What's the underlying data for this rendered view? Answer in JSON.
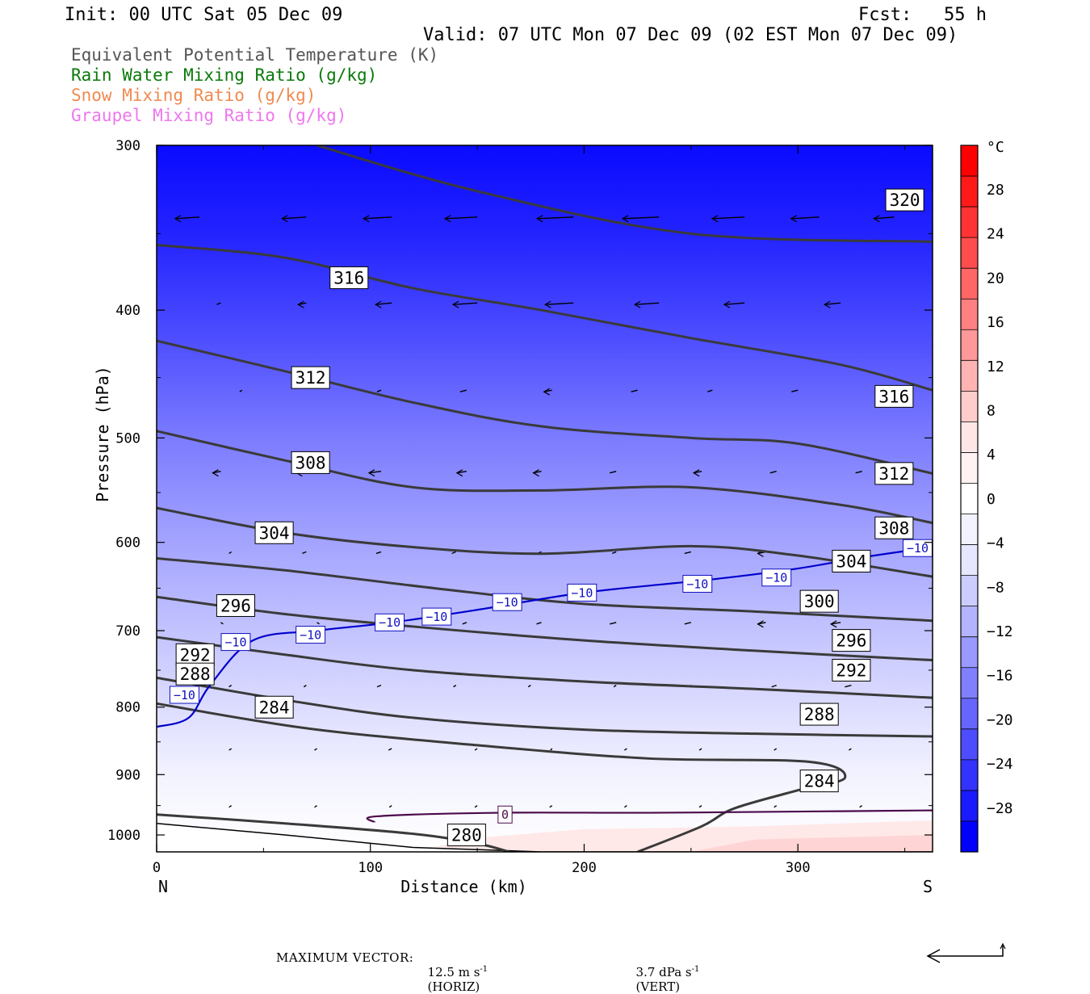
{
  "header": {
    "init": "Init: 00 UTC Sat 05 Dec 09",
    "fcst": "Fcst:   55 h",
    "valid": "Valid: 07 UTC Mon 07 Dec 09 (02 EST Mon 07 Dec 09)"
  },
  "legend": [
    {
      "text": "Equivalent Potential Temperature (K)",
      "color": "#555555"
    },
    {
      "text": "Rain Water Mixing Ratio (g/kg)",
      "color": "#0a7a0a"
    },
    {
      "text": "Snow Mixing Ratio (g/kg)",
      "color": "#f08a50"
    },
    {
      "text": "Graupel Mixing Ratio (g/kg)",
      "color": "#ee77ee"
    }
  ],
  "axes": {
    "ylabel": "Pressure (hPa)",
    "xlabel": "Distance (km)",
    "left_end": "N",
    "right_end": "S"
  },
  "footer": {
    "max_vector_label": "MAXIMUM VECTOR:",
    "horiz": "12.5 m s",
    "horiz_sup": "-1",
    "horiz_tag": "(HORIZ)",
    "vert": "3.7 dPa s",
    "vert_sup": "-1",
    "vert_tag": "(VERT)"
  },
  "colorbar": {
    "unit": "°C",
    "labels": [
      "28",
      "24",
      "20",
      "16",
      "12",
      "8",
      "4",
      "0",
      "−4",
      "−8",
      "−12",
      "−16",
      "−20",
      "−24",
      "−28"
    ],
    "colors": [
      "#0000ff",
      "#1a1aff",
      "#3333ff",
      "#4d4dff",
      "#6666ff",
      "#8080ff",
      "#9999ff",
      "#b3b3ff",
      "#ccccff",
      "#e6e6ff",
      "#f2f2ff",
      "#ffffff",
      "#fff2f2",
      "#ffe6e6",
      "#ffcccc",
      "#ffb3b3",
      "#ff9999",
      "#ff8080",
      "#ff6666",
      "#ff4d4d",
      "#ff3333",
      "#ff1a1a",
      "#ff0000"
    ]
  },
  "chart_data": {
    "type": "cross-section",
    "x_label": "Distance (km)",
    "y_label": "Pressure (hPa)",
    "xlim": [
      0,
      363
    ],
    "ylim": [
      300,
      1030
    ],
    "y_scale": "log",
    "x_ticks": [
      0,
      100,
      200,
      300
    ],
    "y_ticks": [
      300,
      400,
      500,
      600,
      700,
      800,
      900,
      1000
    ],
    "fill_variable": "Temperature (°C)",
    "theta_e_contours": [
      {
        "level": 320,
        "points": [
          [
            75,
            300
          ],
          [
            150,
            325
          ],
          [
            250,
            350
          ],
          [
            363,
            355
          ]
        ]
      },
      {
        "level": 316,
        "points": [
          [
            0,
            357
          ],
          [
            60,
            365
          ],
          [
            120,
            385
          ],
          [
            180,
            400
          ],
          [
            250,
            420
          ],
          [
            320,
            440
          ],
          [
            363,
            460
          ]
        ]
      },
      {
        "level": 312,
        "points": [
          [
            0,
            422
          ],
          [
            60,
            445
          ],
          [
            120,
            470
          ],
          [
            180,
            490
          ],
          [
            250,
            500
          ],
          [
            300,
            505
          ],
          [
            363,
            532
          ]
        ]
      },
      {
        "level": 308,
        "points": [
          [
            0,
            494
          ],
          [
            60,
            520
          ],
          [
            120,
            545
          ],
          [
            180,
            548
          ],
          [
            250,
            545
          ],
          [
            320,
            562
          ],
          [
            363,
            580
          ]
        ]
      },
      {
        "level": 304,
        "points": [
          [
            0,
            565
          ],
          [
            60,
            590
          ],
          [
            120,
            605
          ],
          [
            180,
            612
          ],
          [
            250,
            604
          ],
          [
            300,
            614
          ],
          [
            363,
            637
          ]
        ]
      },
      {
        "level": 300,
        "points": [
          [
            0,
            617
          ],
          [
            60,
            630
          ],
          [
            130,
            650
          ],
          [
            200,
            668
          ],
          [
            280,
            677
          ],
          [
            363,
            688
          ]
        ]
      },
      {
        "level": 296,
        "points": [
          [
            0,
            660
          ],
          [
            60,
            680
          ],
          [
            120,
            695
          ],
          [
            200,
            712
          ],
          [
            280,
            725
          ],
          [
            363,
            737
          ]
        ]
      },
      {
        "level": 292,
        "points": [
          [
            0,
            708
          ],
          [
            60,
            730
          ],
          [
            120,
            750
          ],
          [
            200,
            765
          ],
          [
            280,
            775
          ],
          [
            363,
            787
          ]
        ]
      },
      {
        "level": 288,
        "points": [
          [
            0,
            760
          ],
          [
            60,
            790
          ],
          [
            120,
            815
          ],
          [
            200,
            832
          ],
          [
            280,
            838
          ],
          [
            363,
            842
          ]
        ]
      },
      {
        "level": 284,
        "points": [
          [
            0,
            795
          ],
          [
            70,
            830
          ],
          [
            150,
            855
          ],
          [
            230,
            875
          ],
          [
            305,
            880
          ],
          [
            322,
            905
          ],
          [
            300,
            925
          ],
          [
            270,
            955
          ],
          [
            255,
            985
          ],
          [
            225,
            1030
          ]
        ]
      },
      {
        "level": 280,
        "points": [
          [
            0,
            965
          ],
          [
            60,
            980
          ],
          [
            120,
            998
          ],
          [
            150,
            1015
          ],
          [
            165,
            1030
          ]
        ]
      }
    ],
    "temperature_contours": [
      {
        "level": -10,
        "color": "#0000cc",
        "points": [
          [
            0,
            828
          ],
          [
            15,
            815
          ],
          [
            25,
            770
          ],
          [
            45,
            712
          ],
          [
            75,
            700
          ],
          [
            110,
            690
          ],
          [
            150,
            675
          ],
          [
            200,
            655
          ],
          [
            260,
            640
          ],
          [
            300,
            628
          ],
          [
            330,
            616
          ],
          [
            363,
            605
          ]
        ]
      },
      {
        "level": 0,
        "color": "#4b0a4b",
        "points": [
          [
            102,
            978
          ],
          [
            103,
            968
          ],
          [
            160,
            962
          ],
          [
            230,
            962
          ],
          [
            300,
            960
          ],
          [
            363,
            958
          ]
        ]
      }
    ],
    "ground_curve": [
      [
        0,
        980
      ],
      [
        60,
        1000
      ],
      [
        120,
        1022
      ],
      [
        180,
        1030
      ],
      [
        240,
        1030
      ],
      [
        363,
        1030
      ]
    ]
  }
}
